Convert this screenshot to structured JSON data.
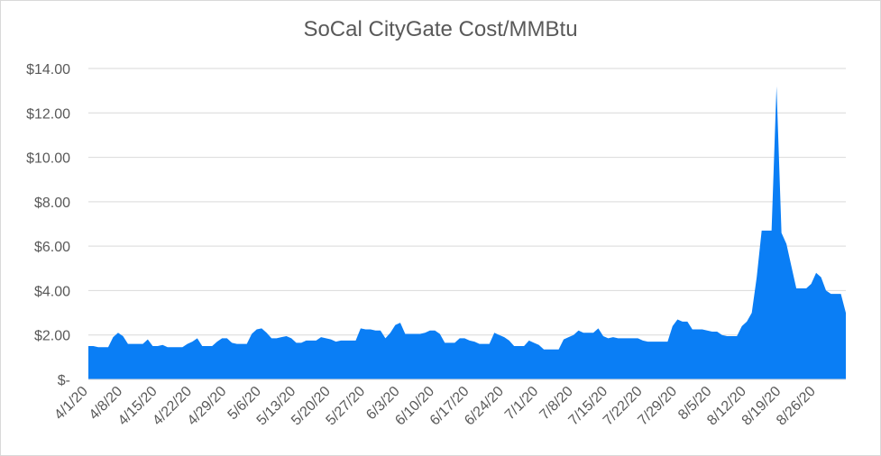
{
  "chart_data": {
    "type": "area",
    "title": "SoCal CityGate Cost/MMBtu",
    "xlabel": "",
    "ylabel": "",
    "ylim": [
      0,
      14
    ],
    "yticks": [
      {
        "value": 0,
        "label": "$-"
      },
      {
        "value": 2,
        "label": "$2.00"
      },
      {
        "value": 4,
        "label": "$4.00"
      },
      {
        "value": 6,
        "label": "$6.00"
      },
      {
        "value": 8,
        "label": "$8.00"
      },
      {
        "value": 10,
        "label": "$10.00"
      },
      {
        "value": 12,
        "label": "$12.00"
      },
      {
        "value": 14,
        "label": "$14.00"
      }
    ],
    "xtick_labels": [
      "4/1/20",
      "4/8/20",
      "4/15/20",
      "4/22/20",
      "4/29/20",
      "5/6/20",
      "5/13/20",
      "5/20/20",
      "5/27/20",
      "6/3/20",
      "6/10/20",
      "6/17/20",
      "6/24/20",
      "7/1/20",
      "7/8/20",
      "7/15/20",
      "7/22/20",
      "7/29/20",
      "8/5/20",
      "8/12/20",
      "8/19/20",
      "8/26/20"
    ],
    "start_date": "4/1/20",
    "fill_color": "#0a7ef5",
    "grid": true,
    "legend": "none",
    "series": [
      {
        "values": [
          1.5,
          1.5,
          1.45,
          1.45,
          1.45,
          1.9,
          2.1,
          1.95,
          1.6,
          1.6,
          1.6,
          1.6,
          1.8,
          1.5,
          1.5,
          1.55,
          1.45,
          1.45,
          1.45,
          1.45,
          1.6,
          1.7,
          1.85,
          1.5,
          1.5,
          1.5,
          1.7,
          1.85,
          1.85,
          1.65,
          1.6,
          1.6,
          1.6,
          2.05,
          2.25,
          2.3,
          2.1,
          1.85,
          1.85,
          1.9,
          1.95,
          1.85,
          1.65,
          1.65,
          1.75,
          1.75,
          1.75,
          1.9,
          1.85,
          1.8,
          1.7,
          1.75,
          1.75,
          1.75,
          1.75,
          2.3,
          2.25,
          2.25,
          2.2,
          2.2,
          1.85,
          2.1,
          2.45,
          2.55,
          2.05,
          2.05,
          2.05,
          2.05,
          2.1,
          2.2,
          2.2,
          2.05,
          1.65,
          1.65,
          1.65,
          1.85,
          1.85,
          1.75,
          1.7,
          1.6,
          1.6,
          1.6,
          2.1,
          2.0,
          1.9,
          1.75,
          1.5,
          1.5,
          1.5,
          1.75,
          1.65,
          1.55,
          1.35,
          1.35,
          1.35,
          1.35,
          1.8,
          1.9,
          2.0,
          2.2,
          2.1,
          2.1,
          2.1,
          2.3,
          1.95,
          1.85,
          1.9,
          1.85,
          1.85,
          1.85,
          1.85,
          1.85,
          1.75,
          1.7,
          1.7,
          1.7,
          1.7,
          1.7,
          2.4,
          2.7,
          2.6,
          2.6,
          2.25,
          2.25,
          2.25,
          2.2,
          2.15,
          2.15,
          2.0,
          1.95,
          1.95,
          1.95,
          2.4,
          2.6,
          3.0,
          4.6,
          6.7,
          6.7,
          6.7,
          13.2,
          6.6,
          6.1,
          5.1,
          4.1,
          4.1,
          4.1,
          4.3,
          4.8,
          4.6,
          4.0,
          3.85,
          3.85,
          3.85,
          3.0
        ]
      }
    ]
  }
}
